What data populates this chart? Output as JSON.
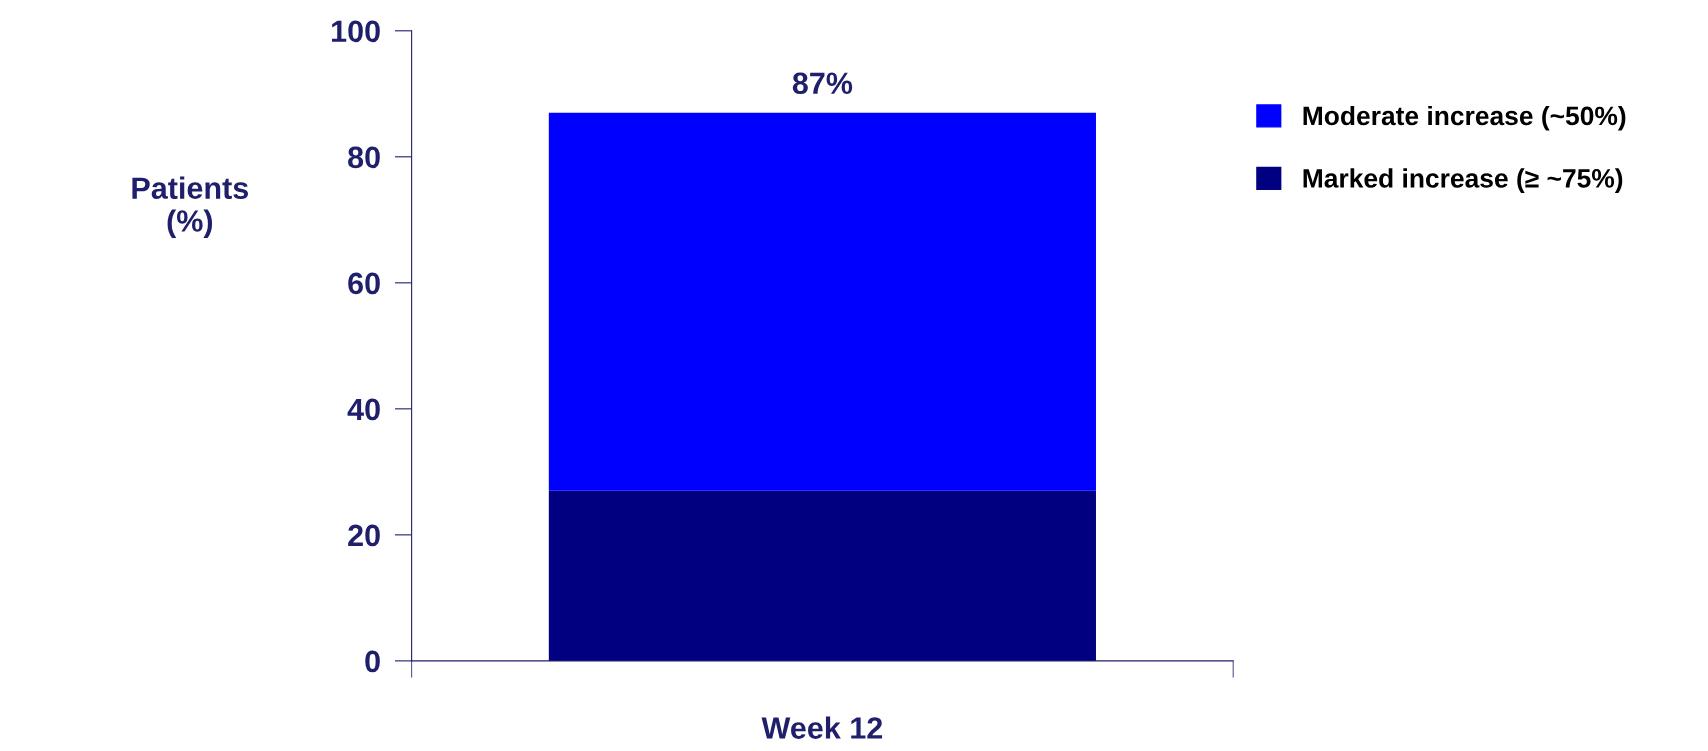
{
  "chart_data": {
    "type": "bar",
    "stacked": true,
    "ylabel": "Patients\n(%)",
    "categories": [
      "Week 12"
    ],
    "series": [
      {
        "name": "Marked increase (≥ ~75%)",
        "color": "#000080",
        "values": [
          27
        ]
      },
      {
        "name": "Moderate increase (~50%)",
        "color": "#0000ff",
        "values": [
          60
        ]
      }
    ],
    "totals": [
      "87%"
    ],
    "ylim": [
      0,
      100
    ],
    "yticks": [
      0,
      20,
      40,
      60,
      80,
      100
    ],
    "grid": false,
    "legend": "right"
  }
}
